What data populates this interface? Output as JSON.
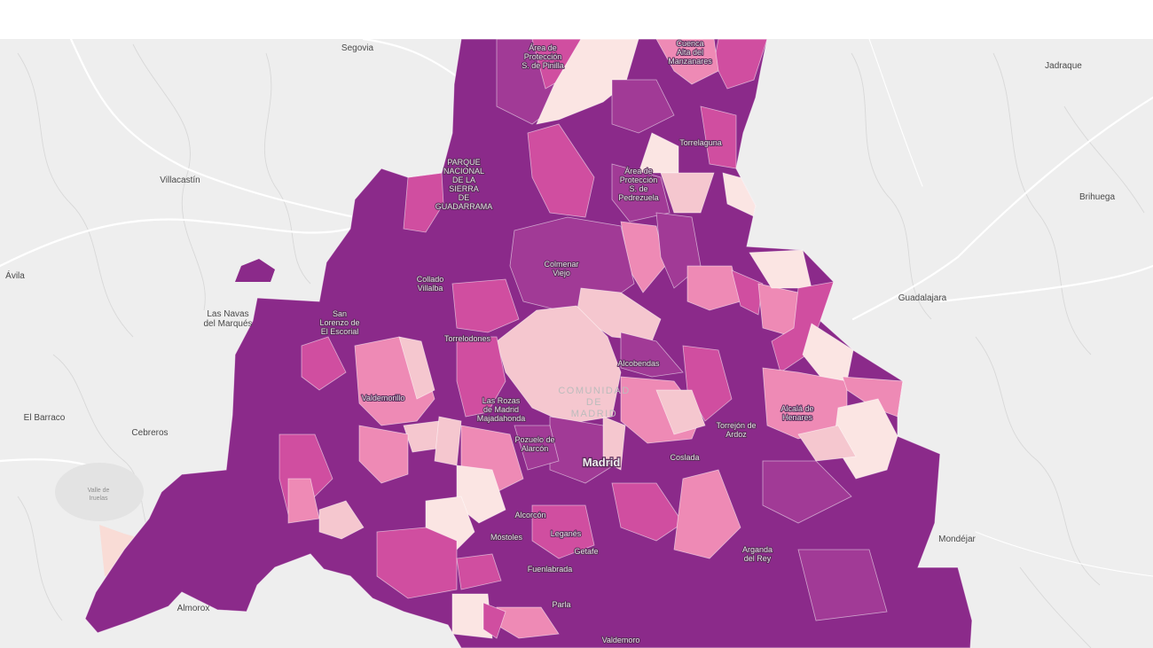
{
  "map": {
    "region_label": [
      "COMUNIDAD",
      "DE",
      "MADRID"
    ],
    "capital": "Madrid",
    "colors": {
      "background": "#eeeeee",
      "c1": "#8b2a8a",
      "c2": "#d04ea0",
      "c3": "#ee8ab5",
      "c4": "#f5c7cf",
      "c5": "#fbe5e3",
      "c0": "#a13a96"
    },
    "outside_places": [
      {
        "name": "Segovia"
      },
      {
        "name": "Jadraque"
      },
      {
        "name": "Villacastín"
      },
      {
        "name": "Brihuega"
      },
      {
        "name": "Ávila"
      },
      {
        "name": "Guadalajara"
      },
      {
        "name": "Las Navas\ndel Marqués"
      },
      {
        "name": "El Barraco"
      },
      {
        "name": "Cebreros"
      },
      {
        "name": "Mondéjar"
      },
      {
        "name": "Almorox"
      }
    ],
    "park_label": "Valle de\nIruelas",
    "inside_places": [
      {
        "name": "Área de\nProtección\nS. de Pinilla"
      },
      {
        "name": "Cuenca\nAlta del\nManzanares"
      },
      {
        "name": "Torrelaguna"
      },
      {
        "name": "PARQUE\nNACIONAL\nDE LA\nSIERRA\nDE\nGUADARRAMA"
      },
      {
        "name": "Área de\nProtección\nS. de\nPedrezuela"
      },
      {
        "name": "Colmenar\nViejo"
      },
      {
        "name": "Collado\nVillalba"
      },
      {
        "name": "San\nLorenzo de\nEl Escorial"
      },
      {
        "name": "Torrelodones"
      },
      {
        "name": "Alcobendas"
      },
      {
        "name": "Valdemorillo"
      },
      {
        "name": "Las Rozas\nde Madrid\nMajadahonda"
      },
      {
        "name": "Alcalá de\nHenares"
      },
      {
        "name": "Torrejón de\nArdoz"
      },
      {
        "name": "Pozuelo de\nAlarcón"
      },
      {
        "name": "Coslada"
      },
      {
        "name": "Alcorcón"
      },
      {
        "name": "Móstoles"
      },
      {
        "name": "Leganés"
      },
      {
        "name": "Getafe"
      },
      {
        "name": "Arganda\ndel Rey"
      },
      {
        "name": "Fuenlabrada"
      },
      {
        "name": "Parla"
      },
      {
        "name": "Valdemoro"
      }
    ]
  }
}
